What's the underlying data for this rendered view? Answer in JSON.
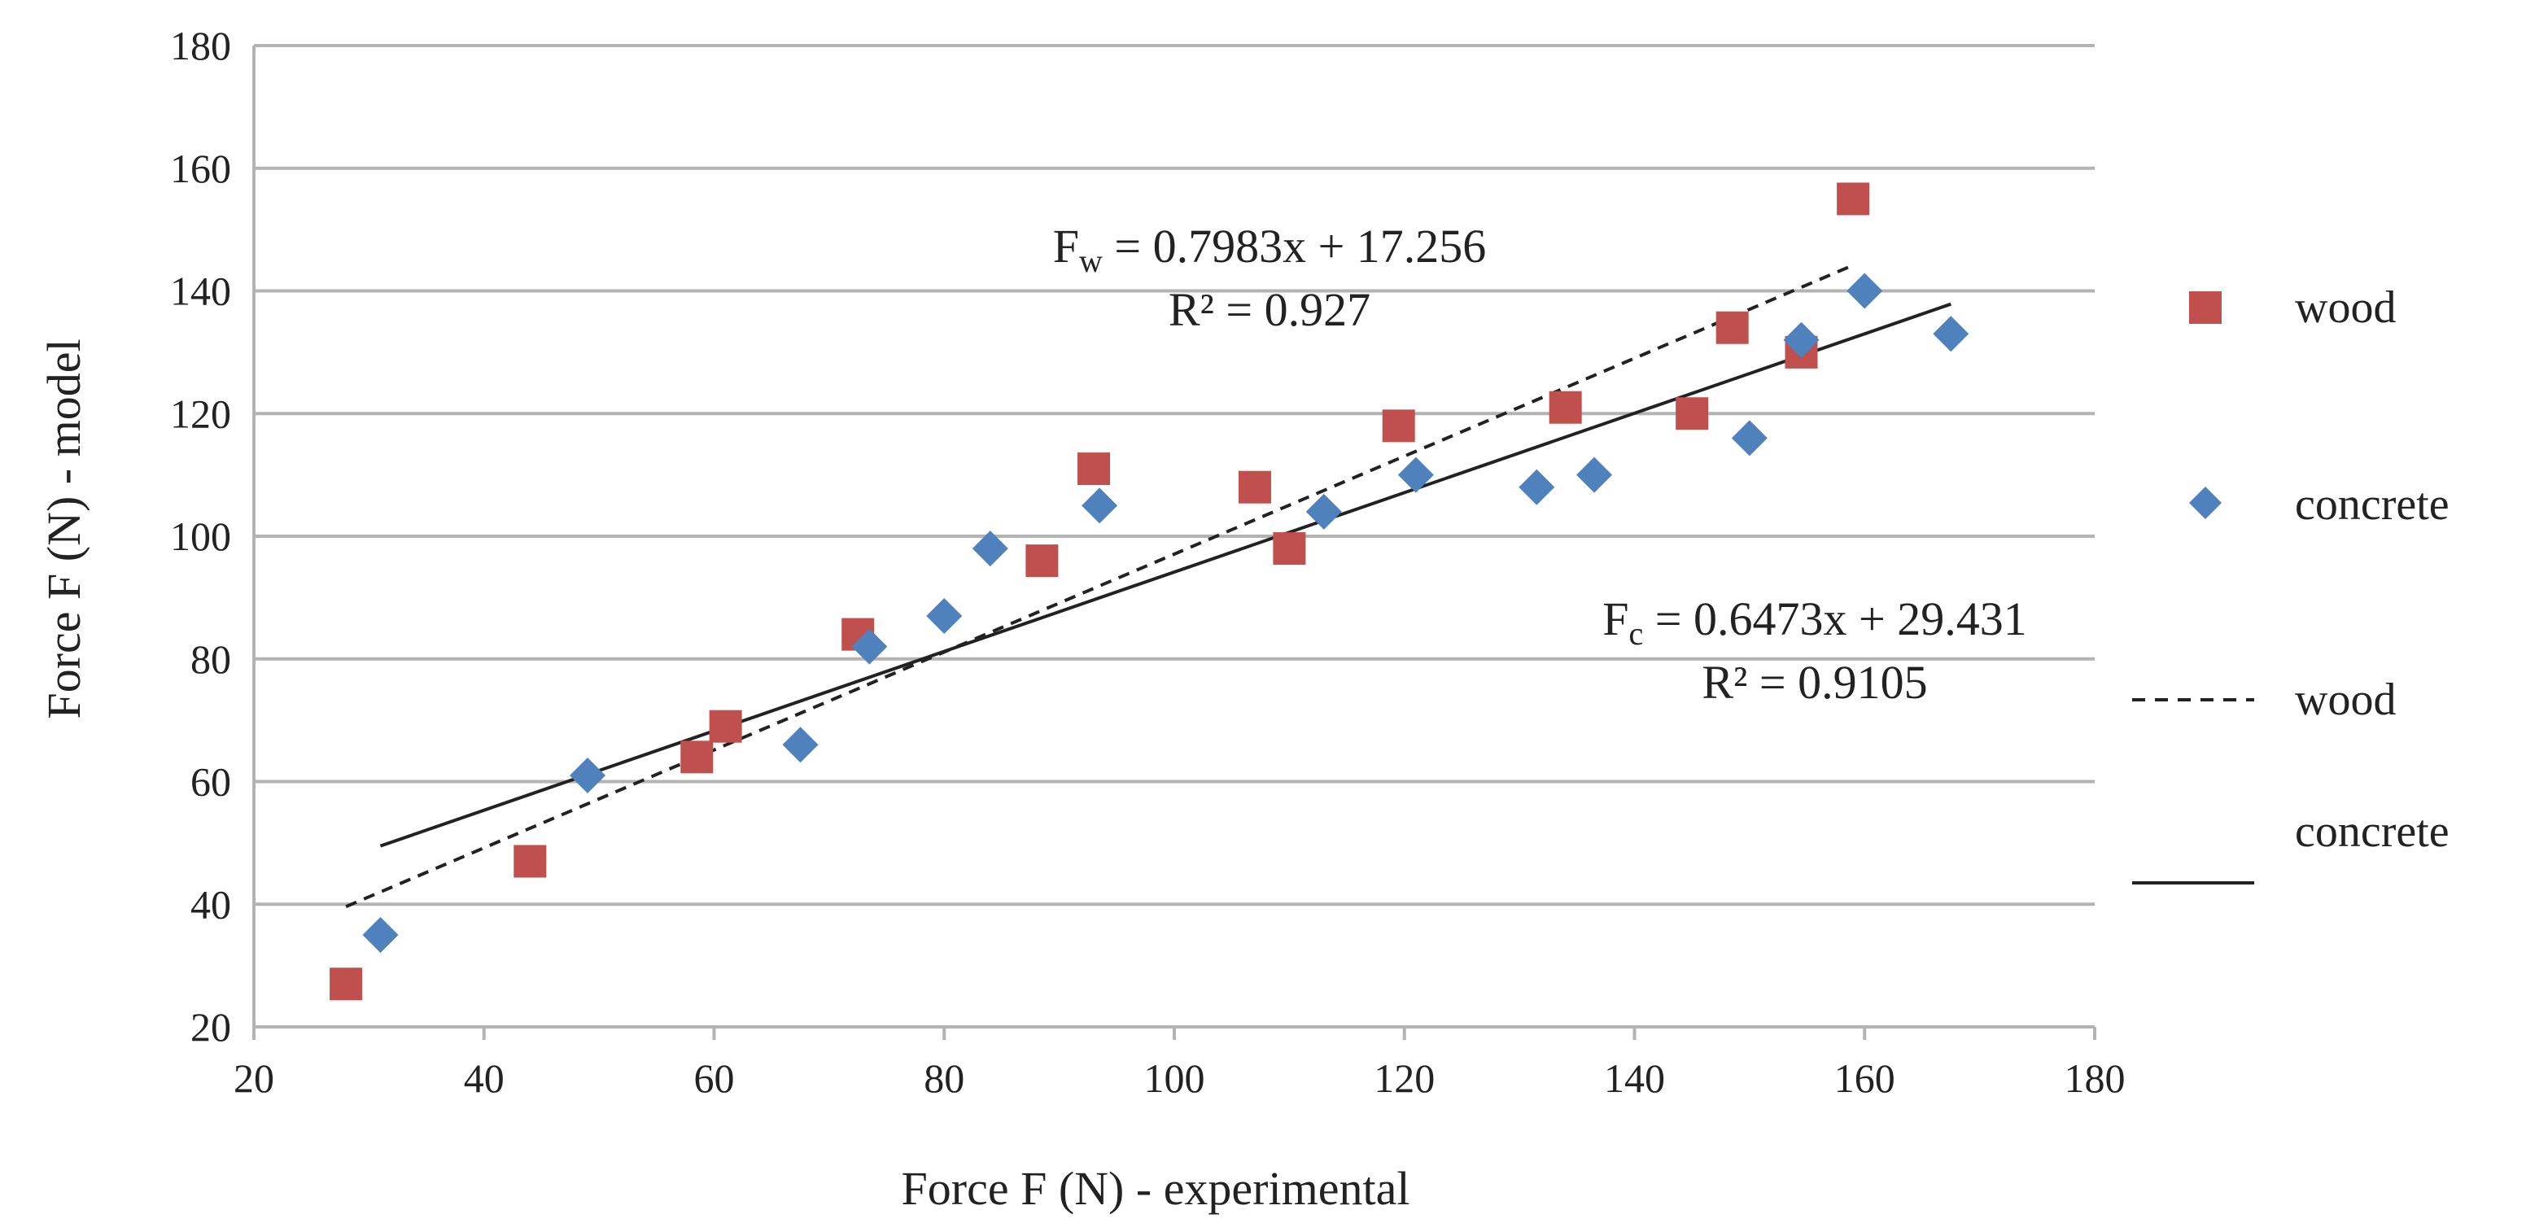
{
  "chart_data": {
    "type": "scatter",
    "title": "",
    "xlabel": "Force F (N) - experimental",
    "ylabel": "Force F (N) - model",
    "xlim": [
      20,
      180
    ],
    "ylim": [
      20,
      180
    ],
    "x_ticks": [
      20,
      40,
      60,
      80,
      100,
      120,
      140,
      160,
      180
    ],
    "y_ticks": [
      20,
      40,
      60,
      80,
      100,
      120,
      140,
      160,
      180
    ],
    "grid": "horizontal",
    "legend_position": "right",
    "colors": {
      "wood": "#c0504d",
      "concrete": "#4f81bd",
      "trend": "#222222",
      "grid": "#b3b3b3"
    },
    "series": [
      {
        "name": "wood",
        "marker": "square",
        "points": [
          [
            28,
            27
          ],
          [
            44,
            47
          ],
          [
            58.5,
            64
          ],
          [
            61,
            69
          ],
          [
            72.5,
            84
          ],
          [
            88.5,
            96
          ],
          [
            93,
            111
          ],
          [
            107,
            108
          ],
          [
            110,
            98
          ],
          [
            119.5,
            118
          ],
          [
            134,
            121
          ],
          [
            145,
            120
          ],
          [
            148.5,
            134
          ],
          [
            154.5,
            130
          ],
          [
            159,
            155
          ]
        ]
      },
      {
        "name": "concrete",
        "marker": "diamond",
        "points": [
          [
            31,
            35
          ],
          [
            49,
            61
          ],
          [
            67.5,
            66
          ],
          [
            73.5,
            82
          ],
          [
            80,
            87
          ],
          [
            84,
            98
          ],
          [
            93.5,
            105
          ],
          [
            113,
            104
          ],
          [
            121,
            110
          ],
          [
            131.5,
            108
          ],
          [
            136.5,
            110
          ],
          [
            150,
            116
          ],
          [
            154.5,
            132
          ],
          [
            160,
            140
          ],
          [
            167.5,
            133
          ]
        ]
      }
    ],
    "trendlines": [
      {
        "name": "wood",
        "slope": 0.7983,
        "intercept": 17.256,
        "x_range": [
          28,
          159
        ],
        "style": "dashed",
        "equation_main": "F",
        "equation_sub": "w",
        "equation_rest": " = 0.7983x + 17.256",
        "r2": "R² = 0.927"
      },
      {
        "name": "concrete",
        "slope": 0.6473,
        "intercept": 29.431,
        "x_range": [
          31,
          167.5
        ],
        "style": "solid",
        "equation_main": "F",
        "equation_sub": "c",
        "equation_rest": " = 0.6473x + 29.431",
        "r2": "R² = 0.9105"
      }
    ],
    "legend": [
      {
        "label": "wood",
        "kind": "square"
      },
      {
        "label": "concrete",
        "kind": "diamond"
      },
      {
        "label": "wood",
        "kind": "dashed-line"
      },
      {
        "label": "concrete",
        "kind": "solid-line"
      }
    ]
  }
}
